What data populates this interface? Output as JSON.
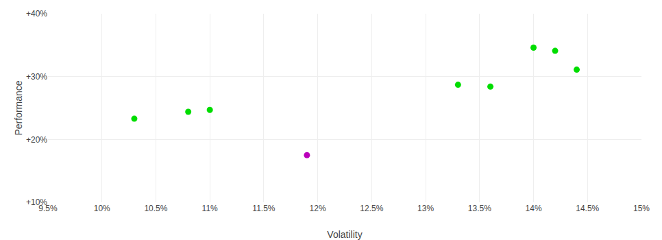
{
  "chart_data": {
    "type": "scatter",
    "xlabel": "Volatility",
    "ylabel": "Performance",
    "series": [
      {
        "color": "#00dd00",
        "x": [
          0.103,
          0.108,
          0.11,
          0.133,
          0.136,
          0.14,
          0.142,
          0.144
        ],
        "values": [
          0.233,
          0.244,
          0.247,
          0.287,
          0.284,
          0.346,
          0.341,
          0.311
        ]
      },
      {
        "color": "#bb00bb",
        "x": [
          0.119
        ],
        "values": [
          0.175
        ]
      }
    ],
    "xlim": [
      0.095,
      0.15
    ],
    "ylim": [
      0.1,
      0.4
    ],
    "xticks": [
      {
        "value": 0.095,
        "label": "9.5%"
      },
      {
        "value": 0.1,
        "label": "10%"
      },
      {
        "value": 0.105,
        "label": "10.5%"
      },
      {
        "value": 0.11,
        "label": "11%"
      },
      {
        "value": 0.115,
        "label": "11.5%"
      },
      {
        "value": 0.12,
        "label": "12%"
      },
      {
        "value": 0.125,
        "label": "12.5%"
      },
      {
        "value": 0.13,
        "label": "13%"
      },
      {
        "value": 0.135,
        "label": "13.5%"
      },
      {
        "value": 0.14,
        "label": "14%"
      },
      {
        "value": 0.145,
        "label": "14.5%"
      },
      {
        "value": 0.15,
        "label": "15%"
      }
    ],
    "yticks": [
      {
        "value": 0.1,
        "label": "+10%"
      },
      {
        "value": 0.2,
        "label": "+20%"
      },
      {
        "value": 0.3,
        "label": "+30%"
      },
      {
        "value": 0.4,
        "label": "+40%"
      }
    ],
    "grid": true
  }
}
